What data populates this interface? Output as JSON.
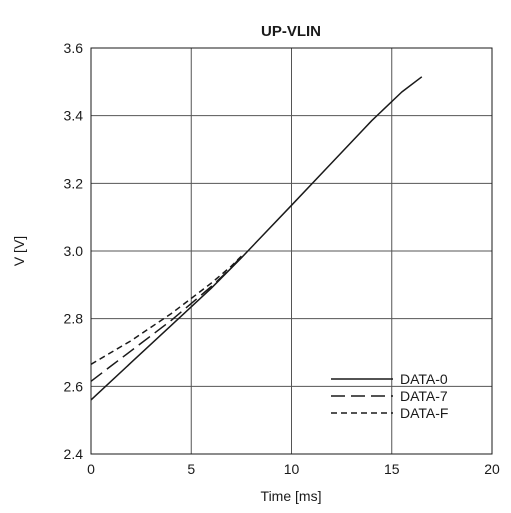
{
  "chart_data": {
    "type": "line",
    "title": "UP-VLIN",
    "xlabel": "Time [ms]",
    "ylabel": "V [V]",
    "xlim": [
      0,
      20
    ],
    "ylim": [
      2.4,
      3.6
    ],
    "x_ticks": [
      0,
      5,
      10,
      15,
      20
    ],
    "y_ticks": [
      2.4,
      2.6,
      2.8,
      3.0,
      3.2,
      3.4,
      3.6
    ],
    "x_tick_labels": [
      "0",
      "5",
      "10",
      "15",
      "20"
    ],
    "y_tick_labels": [
      "2.4",
      "2.6",
      "2.8",
      "3.0",
      "3.2",
      "3.4",
      "3.6"
    ],
    "grid": true,
    "legend_position": "bottom-right",
    "series": [
      {
        "name": "DATA-0",
        "style": "solid",
        "x": [
          0,
          2,
          4,
          6,
          7.5,
          10,
          12,
          14,
          15.5,
          16.5
        ],
        "y": [
          2.56,
          2.67,
          2.78,
          2.89,
          2.98,
          3.135,
          3.26,
          3.385,
          3.47,
          3.515
        ]
      },
      {
        "name": "DATA-7",
        "style": "long-dash",
        "x": [
          0,
          1,
          2,
          3,
          4,
          5,
          6,
          7,
          7.5
        ],
        "y": [
          2.615,
          2.66,
          2.705,
          2.75,
          2.795,
          2.845,
          2.895,
          2.95,
          2.985
        ]
      },
      {
        "name": "DATA-F",
        "style": "short-dash",
        "x": [
          0,
          1,
          2,
          3,
          4,
          5,
          6,
          7,
          7.5
        ],
        "y": [
          2.665,
          2.7,
          2.735,
          2.775,
          2.815,
          2.86,
          2.905,
          2.955,
          2.985
        ]
      }
    ],
    "colors": {
      "line": "#1a1a1a",
      "grid": "#555555",
      "background": "#ffffff"
    }
  }
}
